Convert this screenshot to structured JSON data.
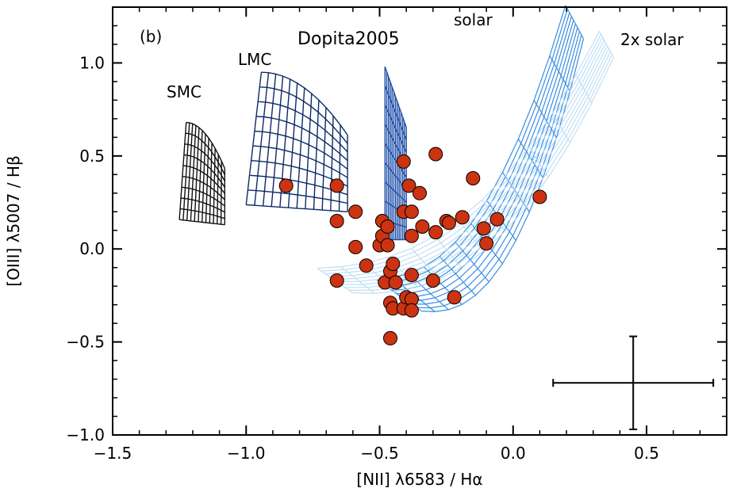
{
  "chart_data": {
    "type": "scatter",
    "panel_label": "(b)",
    "xlabel": "[NII] λ6583 / Hα",
    "ylabel": "[OIII] λ5007 / Hβ",
    "xlim": [
      -1.5,
      0.8
    ],
    "ylim": [
      -1.0,
      1.3
    ],
    "xticks": [
      -1.5,
      -1.0,
      -0.5,
      0.0,
      0.5
    ],
    "xtick_labels": [
      "−1.5",
      "−1.0",
      "−0.5",
      "0.0",
      "0.5"
    ],
    "yticks": [
      -1.0,
      -0.5,
      0.0,
      0.5,
      1.0
    ],
    "ytick_labels": [
      "−1.0",
      "−0.5",
      "0.0",
      "0.5",
      "1.0"
    ],
    "annotations": {
      "model_title": "Dopita2005",
      "smc": "SMC",
      "lmc": "LMC",
      "solar": "solar",
      "two_solar": "2x solar"
    },
    "model_grids": [
      {
        "name": "SMC",
        "color": "#111111",
        "x_range": [
          -1.25,
          -1.08
        ],
        "y_range": [
          0.13,
          0.68
        ]
      },
      {
        "name": "LMC",
        "color": "#0d2a66",
        "x_range": [
          -1.0,
          -0.62
        ],
        "y_range": [
          0.2,
          0.95
        ]
      },
      {
        "name": "0.4 solar",
        "color": "#1f4fa8",
        "x_range": [
          -0.48,
          -0.4
        ],
        "y_range": [
          0.05,
          0.98
        ]
      },
      {
        "name": "solar",
        "color": "#3a8de0",
        "x_range": [
          -0.5,
          0.23
        ],
        "y_range": [
          -0.25,
          1.22
        ]
      },
      {
        "name": "2x solar",
        "color": "#b9dcf5",
        "x_range": [
          -0.78,
          0.35
        ],
        "y_range": [
          -0.17,
          1.1
        ]
      }
    ],
    "series": [
      {
        "name": "observed",
        "color": "#cc3311",
        "points": [
          [
            -0.85,
            0.34
          ],
          [
            -0.66,
            0.34
          ],
          [
            -0.66,
            0.15
          ],
          [
            -0.66,
            -0.17
          ],
          [
            -0.59,
            0.2
          ],
          [
            -0.59,
            0.01
          ],
          [
            -0.55,
            -0.09
          ],
          [
            -0.5,
            0.02
          ],
          [
            -0.49,
            0.15
          ],
          [
            -0.49,
            0.07
          ],
          [
            -0.48,
            -0.18
          ],
          [
            -0.47,
            0.12
          ],
          [
            -0.47,
            0.02
          ],
          [
            -0.46,
            -0.12
          ],
          [
            -0.46,
            -0.29
          ],
          [
            -0.46,
            -0.48
          ],
          [
            -0.45,
            -0.08
          ],
          [
            -0.45,
            -0.32
          ],
          [
            -0.44,
            -0.18
          ],
          [
            -0.41,
            0.47
          ],
          [
            -0.41,
            0.2
          ],
          [
            -0.41,
            -0.32
          ],
          [
            -0.4,
            -0.26
          ],
          [
            -0.39,
            0.34
          ],
          [
            -0.38,
            0.2
          ],
          [
            -0.38,
            0.07
          ],
          [
            -0.38,
            -0.14
          ],
          [
            -0.38,
            -0.27
          ],
          [
            -0.38,
            -0.33
          ],
          [
            -0.35,
            0.3
          ],
          [
            -0.34,
            0.12
          ],
          [
            -0.29,
            0.51
          ],
          [
            -0.3,
            -0.17
          ],
          [
            -0.29,
            0.09
          ],
          [
            -0.25,
            0.15
          ],
          [
            -0.24,
            0.14
          ],
          [
            -0.22,
            -0.26
          ],
          [
            -0.19,
            0.17
          ],
          [
            -0.15,
            0.38
          ],
          [
            -0.11,
            0.11
          ],
          [
            -0.1,
            0.03
          ],
          [
            -0.06,
            0.16
          ],
          [
            0.1,
            0.28
          ]
        ]
      }
    ],
    "error_bar": {
      "x": 0.45,
      "y": -0.72,
      "x_err": 0.3,
      "y_err": 0.25
    }
  }
}
